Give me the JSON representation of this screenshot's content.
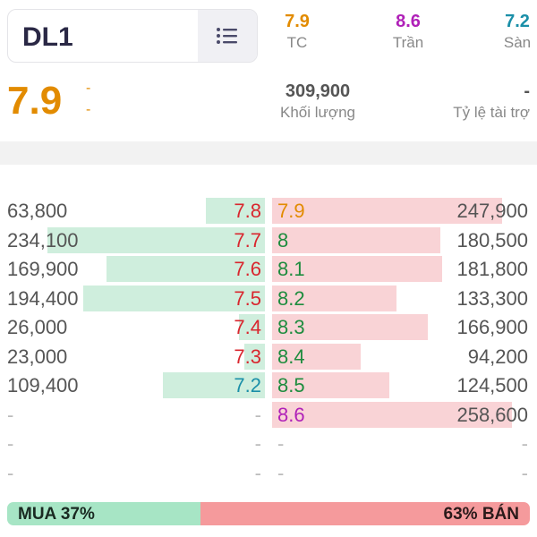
{
  "header": {
    "ticker": "DL1",
    "ref": {
      "value": "7.9",
      "label": "TC",
      "color": "#e28b00"
    },
    "ceiling": {
      "value": "8.6",
      "label": "Trần",
      "color": "#b021b8"
    },
    "floor": {
      "value": "7.2",
      "label": "Sàn",
      "color": "#1a8fa8"
    }
  },
  "summary": {
    "price": "7.9",
    "change": "-",
    "change_pct": "-",
    "volume": "309,900",
    "volume_label": "Khối lượng",
    "ratio": "-",
    "ratio_label": "Tỷ lệ tài trợ"
  },
  "order_book": {
    "rows": [
      {
        "bid_vol": "63,800",
        "bid_price": "7.8",
        "bid_color": "red",
        "bid_fill": 0.23,
        "ask_price": "7.9",
        "ask_color": "orange",
        "ask_vol": "247,900",
        "ask_fill": 0.96
      },
      {
        "bid_vol": "234,100",
        "bid_price": "7.7",
        "bid_color": "red",
        "bid_fill": 0.85,
        "ask_price": "8",
        "ask_color": "green",
        "ask_vol": "180,500",
        "ask_fill": 0.7
      },
      {
        "bid_vol": "169,900",
        "bid_price": "7.6",
        "bid_color": "red",
        "bid_fill": 0.62,
        "ask_price": "8.1",
        "ask_color": "green",
        "ask_vol": "181,800",
        "ask_fill": 0.71
      },
      {
        "bid_vol": "194,400",
        "bid_price": "7.5",
        "bid_color": "red",
        "bid_fill": 0.71,
        "ask_price": "8.2",
        "ask_color": "green",
        "ask_vol": "133,300",
        "ask_fill": 0.52
      },
      {
        "bid_vol": "26,000",
        "bid_price": "7.4",
        "bid_color": "red",
        "bid_fill": 0.1,
        "ask_price": "8.3",
        "ask_color": "green",
        "ask_vol": "166,900",
        "ask_fill": 0.65
      },
      {
        "bid_vol": "23,000",
        "bid_price": "7.3",
        "bid_color": "red",
        "bid_fill": 0.08,
        "ask_price": "8.4",
        "ask_color": "green",
        "ask_vol": "94,200",
        "ask_fill": 0.37
      },
      {
        "bid_vol": "109,400",
        "bid_price": "7.2",
        "bid_color": "teal",
        "bid_fill": 0.4,
        "ask_price": "8.5",
        "ask_color": "green",
        "ask_vol": "124,500",
        "ask_fill": 0.49
      },
      {
        "bid_vol": "-",
        "bid_price": "-",
        "bid_color": "light",
        "bid_fill": 0,
        "ask_price": "8.6",
        "ask_color": "purple",
        "ask_vol": "258,600",
        "ask_fill": 1.0
      },
      {
        "bid_vol": "-",
        "bid_price": "-",
        "bid_color": "light",
        "bid_fill": 0,
        "ask_price": "-",
        "ask_color": "light",
        "ask_vol": "-",
        "ask_fill": 0
      },
      {
        "bid_vol": "-",
        "bid_price": "-",
        "bid_color": "light",
        "bid_fill": 0,
        "ask_price": "-",
        "ask_color": "light",
        "ask_vol": "-",
        "ask_fill": 0
      }
    ]
  },
  "balance": {
    "buy_label": "MUA 37%",
    "sell_label": "63% BÁN",
    "buy_fraction": 0.37,
    "buy_color": "#a7e5c5",
    "sell_color": "#f59a9c"
  }
}
